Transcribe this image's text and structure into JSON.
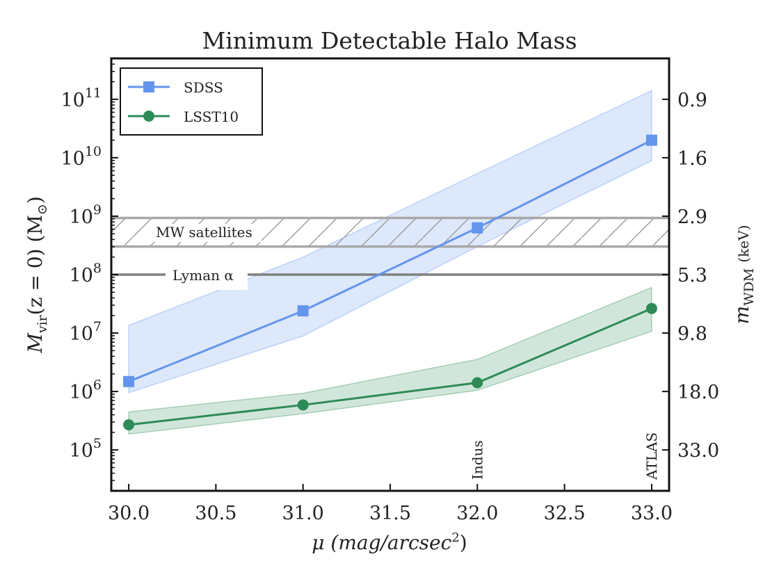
{
  "chart_data": {
    "type": "line",
    "title": "Minimum Detectable Halo Mass",
    "xlabel_main": "μ (mag/arcsec",
    "xlabel_sup": "2",
    "xlabel_tail": ")",
    "ylabel_main": "M",
    "ylabel_sub": "vir",
    "ylabel_tail": "(z = 0)  (M",
    "ylabel_sun": "⊙",
    "ylabel_close": ")",
    "y2label_main": "m",
    "y2label_sub": "WDM",
    "y2label_unit": "(keV)",
    "xlim": [
      29.9,
      33.1
    ],
    "ylim_log10": [
      4.3,
      11.7
    ],
    "y_scale": "log",
    "xticks": [
      "30.0",
      "30.5",
      "31.0",
      "31.5",
      "32.0",
      "32.5",
      "33.0"
    ],
    "xtick_values": [
      30.0,
      30.5,
      31.0,
      31.5,
      32.0,
      32.5,
      33.0
    ],
    "yticks": [
      {
        "base": "10",
        "exp": "5",
        "log10": 5
      },
      {
        "base": "10",
        "exp": "6",
        "log10": 6
      },
      {
        "base": "10",
        "exp": "7",
        "log10": 7
      },
      {
        "base": "10",
        "exp": "8",
        "log10": 8
      },
      {
        "base": "10",
        "exp": "9",
        "log10": 9
      },
      {
        "base": "10",
        "exp": "10",
        "log10": 10
      },
      {
        "base": "10",
        "exp": "11",
        "log10": 11
      }
    ],
    "y2ticks": [
      {
        "label": "0.9",
        "log10_mass": 11
      },
      {
        "label": "1.6",
        "log10_mass": 10
      },
      {
        "label": "2.9",
        "log10_mass": 9
      },
      {
        "label": "5.3",
        "log10_mass": 8
      },
      {
        "label": "9.8",
        "log10_mass": 7
      },
      {
        "label": "18.0",
        "log10_mass": 6
      },
      {
        "label": "33.0",
        "log10_mass": 5
      }
    ],
    "grid": false,
    "legend_position": "top-left",
    "series": [
      {
        "name": "SDSS",
        "color": "#6495ED",
        "marker": "square",
        "x": [
          30.0,
          31.0,
          32.0,
          33.0
        ],
        "y_log10": [
          6.17,
          7.38,
          8.8,
          10.3
        ],
        "band_upper_log10": [
          7.13,
          8.3,
          9.73,
          11.15
        ],
        "band_lower_log10": [
          5.98,
          6.95,
          8.48,
          9.95
        ]
      },
      {
        "name": "LSST10",
        "color": "#2E8B57",
        "marker": "circle",
        "x": [
          30.0,
          31.0,
          32.0,
          33.0
        ],
        "y_log10": [
          5.43,
          5.77,
          6.15,
          7.42
        ],
        "band_upper_log10": [
          5.65,
          5.97,
          6.55,
          7.78
        ],
        "band_lower_log10": [
          5.27,
          5.62,
          6.02,
          7.03
        ]
      }
    ],
    "reference_bands": [
      {
        "label": "MW satellites",
        "lower_log10": 8.48,
        "upper_log10": 8.97,
        "color": "#a8a8a8",
        "hatched": true
      }
    ],
    "reference_lines": [
      {
        "label": "Lyman α",
        "log10": 8.0,
        "color": "#808080"
      }
    ],
    "annotations": [
      {
        "label": "Indus",
        "x": 32.0
      },
      {
        "label": "ATLAS",
        "x": 33.0
      }
    ]
  }
}
